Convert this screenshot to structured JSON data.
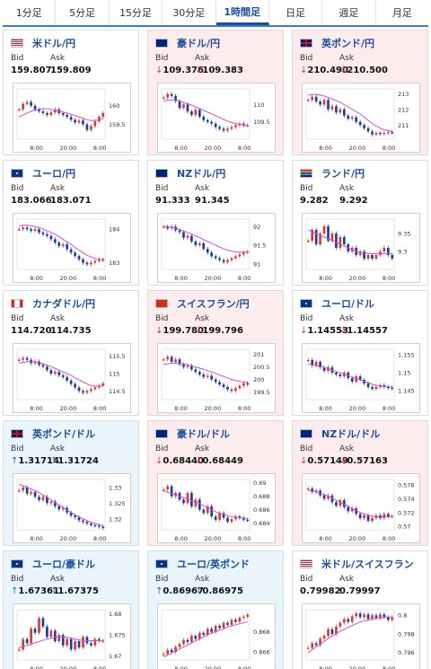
{
  "tabs": [
    {
      "label": "1分足",
      "active": false
    },
    {
      "label": "5分足",
      "active": false
    },
    {
      "label": "15分足",
      "active": false
    },
    {
      "label": "30分足",
      "active": false
    },
    {
      "label": "1時間足",
      "active": true
    },
    {
      "label": "日足",
      "active": false
    },
    {
      "label": "週足",
      "active": false
    },
    {
      "label": "月足",
      "active": false
    }
  ],
  "labels": {
    "bid": "Bid",
    "ask": "Ask"
  },
  "cards": [
    {
      "pair": "米ドル/円",
      "flag": "us-jp-flag-icon",
      "status": "flat",
      "arrow": "",
      "bid": "159.807",
      "ask": "159.809",
      "chart_data": {
        "type": "line",
        "x_ticks": [
          "8:00",
          "20:00",
          "8:00"
        ],
        "y_ticks": [
          "160",
          "159.5"
        ],
        "ylim": [
          159.1,
          160.45
        ],
        "price": [
          159.9,
          160.05,
          160.1,
          160.0,
          159.9,
          159.85,
          159.8,
          159.75,
          159.82,
          159.9,
          159.8,
          159.75,
          159.7,
          159.62,
          159.55,
          159.6,
          159.5,
          159.35,
          159.45,
          159.58,
          159.7,
          159.8
        ],
        "ma": [
          159.7,
          159.75,
          159.8,
          159.85,
          159.88,
          159.9,
          159.92,
          159.92,
          159.9,
          159.88,
          159.86,
          159.83,
          159.8,
          159.77,
          159.73,
          159.7,
          159.66,
          159.62,
          159.6,
          159.6,
          159.62,
          159.65
        ]
      }
    },
    {
      "pair": "豪ドル/円",
      "flag": "au-jp-flag-icon",
      "status": "down",
      "arrow": "↓",
      "bid": "109.376",
      "ask": "109.383",
      "chart_data": {
        "type": "line",
        "x_ticks": [
          "8:00",
          "20:00",
          "8:00"
        ],
        "y_ticks": [
          "110",
          "109.5"
        ],
        "ylim": [
          109.0,
          110.45
        ],
        "price": [
          110.2,
          110.3,
          110.25,
          110.1,
          109.9,
          110.0,
          109.8,
          109.7,
          109.85,
          109.65,
          109.55,
          109.5,
          109.45,
          109.35,
          109.3,
          109.25,
          109.3,
          109.35,
          109.4,
          109.45,
          109.4,
          109.4
        ],
        "ma": [
          110.1,
          110.12,
          110.13,
          110.12,
          110.1,
          110.06,
          110.02,
          109.98,
          109.93,
          109.88,
          109.83,
          109.78,
          109.73,
          109.68,
          109.62,
          109.57,
          109.52,
          109.48,
          109.45,
          109.42,
          109.41,
          109.4
        ]
      }
    },
    {
      "pair": "英ポンド/円",
      "flag": "gb-jp-flag-icon",
      "status": "down",
      "arrow": "↓",
      "bid": "210.490",
      "ask": "210.500",
      "chart_data": {
        "type": "line",
        "x_ticks": [
          "8:00",
          "20:00",
          "8:00"
        ],
        "y_ticks": [
          "213",
          "212",
          "211"
        ],
        "ylim": [
          210.1,
          213.3
        ],
        "price": [
          212.6,
          212.8,
          212.5,
          212.3,
          212.6,
          212.0,
          212.2,
          211.8,
          212.0,
          211.6,
          211.4,
          211.5,
          211.2,
          211.0,
          210.8,
          210.6,
          210.4,
          210.5,
          210.45,
          210.5,
          210.55,
          210.5
        ],
        "ma": [
          212.9,
          212.95,
          212.95,
          212.9,
          212.85,
          212.75,
          212.65,
          212.55,
          212.45,
          212.3,
          212.15,
          212.0,
          211.85,
          211.7,
          211.5,
          211.3,
          211.1,
          210.95,
          210.8,
          210.7,
          210.65,
          210.6
        ]
      }
    },
    {
      "pair": "ユーロ/円",
      "flag": "eu-jp-flag-icon",
      "status": "flat",
      "arrow": "",
      "bid": "183.066",
      "ask": "183.071",
      "chart_data": {
        "type": "line",
        "x_ticks": [
          "8:00",
          "20:00",
          "8:00"
        ],
        "y_ticks": [
          "184",
          "183"
        ],
        "ylim": [
          182.8,
          184.3
        ],
        "price": [
          184.0,
          184.05,
          184.0,
          183.95,
          184.0,
          183.9,
          183.85,
          183.8,
          183.7,
          183.6,
          183.5,
          183.55,
          183.4,
          183.3,
          183.2,
          183.1,
          183.0,
          182.95,
          183.0,
          183.05,
          183.1,
          183.07
        ],
        "ma": [
          184.1,
          184.12,
          184.12,
          184.1,
          184.08,
          184.05,
          184.0,
          183.95,
          183.9,
          183.85,
          183.78,
          183.7,
          183.62,
          183.55,
          183.45,
          183.37,
          183.3,
          183.22,
          183.17,
          183.13,
          183.1,
          183.08
        ]
      }
    },
    {
      "pair": "NZドル/円",
      "flag": "nz-jp-flag-icon",
      "status": "flat",
      "arrow": "",
      "bid": "91.333",
      "ask": "91.345",
      "chart_data": {
        "type": "line",
        "x_ticks": [
          "8:00",
          "20:00",
          "8:00"
        ],
        "y_ticks": [
          "92",
          "91.5",
          "91"
        ],
        "ylim": [
          90.85,
          92.2
        ],
        "price": [
          92.0,
          91.95,
          92.0,
          91.9,
          91.85,
          91.7,
          91.75,
          91.6,
          91.5,
          91.55,
          91.4,
          91.3,
          91.2,
          91.15,
          91.1,
          91.05,
          91.1,
          91.15,
          91.2,
          91.25,
          91.3,
          91.33
        ],
        "ma": [
          92.0,
          92.0,
          91.98,
          91.95,
          91.92,
          91.88,
          91.84,
          91.8,
          91.75,
          91.7,
          91.65,
          91.6,
          91.55,
          91.5,
          91.45,
          91.4,
          91.37,
          91.34,
          91.32,
          91.31,
          91.31,
          91.32
        ]
      }
    },
    {
      "pair": "ランド/円",
      "flag": "za-jp-flag-icon",
      "status": "flat",
      "arrow": "",
      "bid": "9.282",
      "ask": "9.292",
      "chart_data": {
        "type": "line",
        "x_ticks": [
          "8:00",
          "20:00",
          "8:00"
        ],
        "y_ticks": [
          "9.35",
          "9.3"
        ],
        "ylim": [
          9.25,
          9.39
        ],
        "price": [
          9.33,
          9.36,
          9.32,
          9.35,
          9.37,
          9.33,
          9.35,
          9.31,
          9.34,
          9.32,
          9.3,
          9.31,
          9.29,
          9.3,
          9.28,
          9.29,
          9.28,
          9.29,
          9.3,
          9.31,
          9.29,
          9.28
        ],
        "ma": [
          9.36,
          9.355,
          9.35,
          9.345,
          9.34,
          9.335,
          9.33,
          9.325,
          9.32,
          9.315,
          9.31,
          9.305,
          9.3,
          9.298,
          9.296,
          9.295,
          9.294,
          9.294,
          9.294,
          9.294,
          9.294,
          9.293
        ]
      }
    },
    {
      "pair": "カナダドル/円",
      "flag": "ca-jp-flag-icon",
      "status": "flat",
      "arrow": "",
      "bid": "114.720",
      "ask": "114.735",
      "chart_data": {
        "type": "line",
        "x_ticks": [
          "8:00",
          "20:00",
          "8:00"
        ],
        "y_ticks": [
          "115.5",
          "115",
          "114.5"
        ],
        "ylim": [
          114.25,
          115.7
        ],
        "price": [
          115.4,
          115.45,
          115.4,
          115.3,
          115.35,
          115.25,
          115.2,
          115.1,
          115.0,
          115.05,
          114.95,
          114.9,
          114.8,
          114.7,
          114.6,
          114.5,
          114.45,
          114.5,
          114.55,
          114.6,
          114.65,
          114.72
        ],
        "ma": [
          115.3,
          115.32,
          115.34,
          115.35,
          115.34,
          115.32,
          115.28,
          115.24,
          115.2,
          115.15,
          115.1,
          115.05,
          115.0,
          114.95,
          114.88,
          114.82,
          114.76,
          114.7,
          114.66,
          114.64,
          114.64,
          114.65
        ]
      }
    },
    {
      "pair": "スイスフラン/円",
      "flag": "ch-jp-flag-icon",
      "status": "down",
      "arrow": "↓",
      "bid": "199.780",
      "ask": "199.796",
      "chart_data": {
        "type": "line",
        "x_ticks": [
          "8:00",
          "20:00",
          "8:00"
        ],
        "y_ticks": [
          "201",
          "200.5",
          "200",
          "199.5"
        ],
        "ylim": [
          199.2,
          201.2
        ],
        "price": [
          200.8,
          200.9,
          200.7,
          200.8,
          200.6,
          200.5,
          200.55,
          200.4,
          200.3,
          200.2,
          200.1,
          200.15,
          200.0,
          199.9,
          199.8,
          199.7,
          199.6,
          199.55,
          199.65,
          199.75,
          199.85,
          199.8
        ],
        "ma": [
          200.6,
          200.62,
          200.64,
          200.65,
          200.64,
          200.62,
          200.58,
          200.54,
          200.5,
          200.45,
          200.4,
          200.35,
          200.3,
          200.24,
          200.18,
          200.12,
          200.06,
          200.0,
          199.96,
          199.93,
          199.9,
          199.88
        ]
      }
    },
    {
      "pair": "ユーロ/ドル",
      "flag": "eu-us-flag-icon",
      "status": "flat",
      "arrow": "↓",
      "bid": "1.14553",
      "ask": "1.14557",
      "chart_data": {
        "type": "line",
        "x_ticks": [
          "8:00",
          "20:00",
          "8:00"
        ],
        "y_ticks": [
          "1.155",
          "1.15",
          "1.145"
        ],
        "ylim": [
          1.1425,
          1.1565
        ],
        "price": [
          1.1535,
          1.152,
          1.153,
          1.1515,
          1.1505,
          1.1515,
          1.15,
          1.1495,
          1.149,
          1.15,
          1.1485,
          1.1475,
          1.149,
          1.148,
          1.147,
          1.146,
          1.1455,
          1.146,
          1.1465,
          1.146,
          1.1458,
          1.1455
        ],
        "ma": [
          1.1525,
          1.1522,
          1.152,
          1.1517,
          1.1514,
          1.1511,
          1.1507,
          1.1503,
          1.15,
          1.1496,
          1.1492,
          1.1488,
          1.1484,
          1.148,
          1.1476,
          1.1472,
          1.1468,
          1.1465,
          1.1463,
          1.1462,
          1.1461,
          1.146
        ]
      }
    },
    {
      "pair": "英ポンド/ドル",
      "flag": "gb-us-flag-icon",
      "status": "up",
      "arrow": "↑",
      "bid": "1.31714",
      "ask": "1.31724",
      "chart_data": {
        "type": "line",
        "x_ticks": [
          "8:00",
          "20:00",
          "8:00"
        ],
        "y_ticks": [
          "1.33",
          "1.325",
          "1.32"
        ],
        "ylim": [
          1.3165,
          1.3325
        ],
        "price": [
          1.329,
          1.33,
          1.328,
          1.3285,
          1.327,
          1.326,
          1.327,
          1.325,
          1.3255,
          1.324,
          1.323,
          1.3235,
          1.322,
          1.321,
          1.3205,
          1.3195,
          1.319,
          1.3185,
          1.318,
          1.3178,
          1.3175,
          1.3171
        ],
        "ma": [
          1.331,
          1.3305,
          1.33,
          1.3295,
          1.329,
          1.3283,
          1.3276,
          1.3268,
          1.326,
          1.3252,
          1.3244,
          1.3236,
          1.3228,
          1.322,
          1.3213,
          1.3206,
          1.32,
          1.3194,
          1.3189,
          1.3185,
          1.3181,
          1.3178
        ]
      }
    },
    {
      "pair": "豪ドル/ドル",
      "flag": "au-us-flag-icon",
      "status": "down",
      "arrow": "↓",
      "bid": "0.68440",
      "ask": "0.68449",
      "chart_data": {
        "type": "line",
        "x_ticks": [
          "8:00",
          "20:00",
          "8:00"
        ],
        "y_ticks": [
          "0.69",
          "0.688",
          "0.686",
          "0.684"
        ],
        "ylim": [
          0.683,
          0.6905
        ],
        "price": [
          0.689,
          0.6895,
          0.688,
          0.6885,
          0.6875,
          0.687,
          0.6885,
          0.6865,
          0.6875,
          0.686,
          0.6855,
          0.6865,
          0.685,
          0.6845,
          0.6855,
          0.6848,
          0.6842,
          0.6846,
          0.685,
          0.6848,
          0.6845,
          0.6844
        ],
        "ma": [
          0.6888,
          0.6886,
          0.6884,
          0.6882,
          0.688,
          0.6878,
          0.6876,
          0.6874,
          0.6872,
          0.6869,
          0.6866,
          0.6863,
          0.686,
          0.6857,
          0.6855,
          0.6853,
          0.6851,
          0.685,
          0.6849,
          0.6848,
          0.6847,
          0.6846
        ]
      }
    },
    {
      "pair": "NZドル/ドル",
      "flag": "nz-us-flag-icon",
      "status": "down",
      "arrow": "↓",
      "bid": "0.57149",
      "ask": "0.57163",
      "chart_data": {
        "type": "line",
        "x_ticks": [
          "8:00",
          "20:00",
          "8:00"
        ],
        "y_ticks": [
          "0.576",
          "0.574",
          "0.572",
          "0.57"
        ],
        "ylim": [
          0.5695,
          0.5768
        ],
        "price": [
          0.5755,
          0.575,
          0.5752,
          0.5745,
          0.574,
          0.5745,
          0.5735,
          0.573,
          0.5738,
          0.5728,
          0.5722,
          0.5726,
          0.5718,
          0.5712,
          0.5716,
          0.5708,
          0.5712,
          0.5716,
          0.5712,
          0.5718,
          0.5714,
          0.5715
        ],
        "ma": [
          0.5752,
          0.5751,
          0.575,
          0.5748,
          0.5746,
          0.5744,
          0.5741,
          0.5738,
          0.5735,
          0.5732,
          0.5729,
          0.5726,
          0.5723,
          0.572,
          0.5718,
          0.5716,
          0.5715,
          0.5714,
          0.5714,
          0.5714,
          0.5714,
          0.5714
        ]
      }
    },
    {
      "pair": "ユーロ/豪ドル",
      "flag": "eu-au-flag-icon",
      "status": "up",
      "arrow": "↑",
      "bid": "1.67361",
      "ask": "1.67375",
      "chart_data": {
        "type": "line",
        "x_ticks": [
          "8:00",
          "20:00",
          "8:00"
        ],
        "y_ticks": [
          "1.68",
          "1.675",
          "1.67"
        ],
        "ylim": [
          1.669,
          1.681
        ],
        "price": [
          1.6715,
          1.674,
          1.673,
          1.6765,
          1.6755,
          1.679,
          1.677,
          1.6745,
          1.676,
          1.6735,
          1.675,
          1.6725,
          1.674,
          1.6715,
          1.6735,
          1.672,
          1.6745,
          1.673,
          1.6725,
          1.674,
          1.6735,
          1.6736
        ],
        "ma": [
          1.672,
          1.6722,
          1.6725,
          1.6728,
          1.6731,
          1.6734,
          1.6737,
          1.674,
          1.6742,
          1.6744,
          1.6745,
          1.6745,
          1.6744,
          1.6742,
          1.674,
          1.6738,
          1.6737,
          1.6736,
          1.6736,
          1.6736,
          1.6736,
          1.6736
        ]
      }
    },
    {
      "pair": "ユーロ/英ポンド",
      "flag": "eu-gb-flag-icon",
      "status": "up",
      "arrow": "↑",
      "bid": "0.86967",
      "ask": "0.86975",
      "chart_data": {
        "type": "line",
        "x_ticks": [
          "8:00",
          "20:00",
          "8:00"
        ],
        "y_ticks": [
          "0.868",
          "0.866"
        ],
        "ylim": [
          0.8652,
          0.8702
        ],
        "price": [
          0.8658,
          0.8662,
          0.866,
          0.8665,
          0.8668,
          0.8672,
          0.867,
          0.8676,
          0.8673,
          0.8679,
          0.8677,
          0.8683,
          0.868,
          0.8686,
          0.8684,
          0.8689,
          0.8687,
          0.8692,
          0.869,
          0.8694,
          0.8695,
          0.8697
        ],
        "ma": [
          0.8655,
          0.8657,
          0.8659,
          0.8661,
          0.8663,
          0.8665,
          0.8667,
          0.8669,
          0.8671,
          0.8673,
          0.8675,
          0.8677,
          0.8679,
          0.868,
          0.8682,
          0.8683,
          0.8685,
          0.8686,
          0.8687,
          0.8688,
          0.8689,
          0.869
        ]
      }
    },
    {
      "pair": "米ドル/スイスフラン",
      "flag": "us-ch-flag-icon",
      "status": "flat",
      "arrow": "",
      "bid": "0.79982",
      "ask": "0.79997",
      "chart_data": {
        "type": "line",
        "x_ticks": [
          "8:00",
          "20:00",
          "8:00"
        ],
        "y_ticks": [
          "0.8",
          "0.798",
          "0.796"
        ],
        "ylim": [
          0.7952,
          0.8006
        ],
        "price": [
          0.7965,
          0.797,
          0.7968,
          0.7975,
          0.7978,
          0.7985,
          0.798,
          0.7988,
          0.7992,
          0.7996,
          0.7993,
          0.7999,
          0.8002,
          0.7998,
          0.8001,
          0.7996,
          0.8,
          0.7997,
          0.8001,
          0.7998,
          0.7995,
          0.7998
        ],
        "ma": [
          0.796,
          0.7963,
          0.7966,
          0.7969,
          0.7972,
          0.7975,
          0.7978,
          0.798,
          0.7983,
          0.7985,
          0.7987,
          0.7989,
          0.7991,
          0.7993,
          0.7994,
          0.7995,
          0.7996,
          0.7997,
          0.7997,
          0.7998,
          0.7998,
          0.7998
        ]
      }
    }
  ],
  "colors": {
    "tab_active": "#1a4d9c",
    "up_bg": "#e9f4fb",
    "down_bg": "#fcecee",
    "candle_up": "#d43a3a",
    "candle_down": "#1e3f8f",
    "ma_line": "#d34fd0",
    "ma_line2": "#2b8fd6"
  }
}
